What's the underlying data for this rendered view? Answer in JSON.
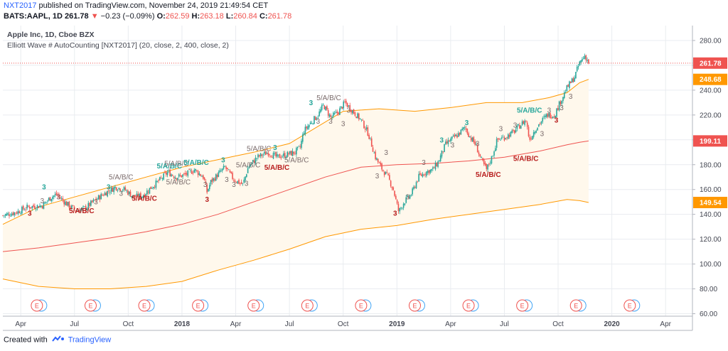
{
  "header": {
    "author": "NXT2017",
    "published_text": "published on TradingView.com, November 24, 2019 21:49:54 CET",
    "symbol": "BATS:AAPL, 1D",
    "last": "261.78",
    "change": "−0.23 (−0.09%)",
    "o_label": "O:",
    "o_value": "262.59",
    "h_label": "H:",
    "h_value": "263.18",
    "l_label": "L:",
    "l_value": "260.84",
    "c_label": "C:",
    "c_value": "261.78"
  },
  "legend": {
    "title": "Apple Inc, 1D, Cboe BZX",
    "indicator": "Elliott Wave # AutoCounting [NXT2017] (20, close, 2, 400, close, 2)"
  },
  "footer": {
    "created_with": "Created with",
    "brand": "TradingView"
  },
  "colors": {
    "up": "#26a69a",
    "down": "#ef5350",
    "band_fill": "#fff8ec",
    "orange": "#ff9800",
    "red_ma": "#ef5350",
    "grid": "#e9ecf0",
    "wave_green": "#26a69a",
    "wave_red": "#b71c1c",
    "wave_gray": "#7a6b6b"
  },
  "chart_data": {
    "type": "candlestick",
    "y_ticks": [
      60,
      80,
      100,
      120,
      140,
      160,
      180,
      200,
      220,
      240,
      260,
      280
    ],
    "y_tick_labels": [
      "60.00",
      "80.00",
      "100.00",
      "120.00",
      "140.00",
      "160.00",
      "180.00",
      "200.00",
      "220.00",
      "240.00",
      "260.00",
      "280.00"
    ],
    "ylim": [
      58,
      292
    ],
    "x_labels": [
      {
        "label": "Apr",
        "m": 3,
        "bold": false
      },
      {
        "label": "Jul",
        "m": 6,
        "bold": false
      },
      {
        "label": "Oct",
        "m": 9,
        "bold": false
      },
      {
        "label": "2018",
        "m": 12,
        "bold": true
      },
      {
        "label": "Apr",
        "m": 15,
        "bold": false
      },
      {
        "label": "Jul",
        "m": 18,
        "bold": false
      },
      {
        "label": "Oct",
        "m": 21,
        "bold": false
      },
      {
        "label": "2019",
        "m": 24,
        "bold": true
      },
      {
        "label": "Apr",
        "m": 27,
        "bold": false
      },
      {
        "label": "Jul",
        "m": 30,
        "bold": false
      },
      {
        "label": "Oct",
        "m": 33,
        "bold": false
      },
      {
        "label": "2020",
        "m": 36,
        "bold": true
      },
      {
        "label": "Apr",
        "m": 39,
        "bold": false
      }
    ],
    "xlim_months": [
      2.0,
      40.5
    ],
    "price_path": [
      [
        2.0,
        139
      ],
      [
        2.8,
        142
      ],
      [
        3.4,
        146
      ],
      [
        4.2,
        147
      ],
      [
        4.7,
        154
      ],
      [
        5.0,
        156
      ],
      [
        5.6,
        148
      ],
      [
        6.1,
        143
      ],
      [
        6.6,
        145
      ],
      [
        7.2,
        152
      ],
      [
        7.8,
        158
      ],
      [
        8.3,
        162
      ],
      [
        8.8,
        160
      ],
      [
        9.3,
        154
      ],
      [
        9.8,
        155
      ],
      [
        10.3,
        162
      ],
      [
        10.8,
        168
      ],
      [
        11.2,
        174
      ],
      [
        11.7,
        170
      ],
      [
        12.2,
        172
      ],
      [
        12.7,
        176
      ],
      [
        13.2,
        170
      ],
      [
        13.4,
        158
      ],
      [
        13.6,
        166
      ],
      [
        14.0,
        172
      ],
      [
        14.4,
        178
      ],
      [
        14.9,
        168
      ],
      [
        15.4,
        164
      ],
      [
        15.7,
        178
      ],
      [
        16.2,
        186
      ],
      [
        16.8,
        190
      ],
      [
        17.3,
        186
      ],
      [
        17.8,
        188
      ],
      [
        18.3,
        190
      ],
      [
        18.6,
        194
      ],
      [
        18.8,
        207
      ],
      [
        19.2,
        214
      ],
      [
        19.6,
        220
      ],
      [
        19.9,
        228
      ],
      [
        20.3,
        218
      ],
      [
        20.7,
        222
      ],
      [
        21.1,
        230
      ],
      [
        21.6,
        222
      ],
      [
        22.0,
        216
      ],
      [
        22.4,
        205
      ],
      [
        22.8,
        186
      ],
      [
        23.1,
        178
      ],
      [
        23.5,
        170
      ],
      [
        23.8,
        160
      ],
      [
        24.1,
        142
      ],
      [
        24.4,
        150
      ],
      [
        24.8,
        156
      ],
      [
        25.2,
        170
      ],
      [
        25.6,
        174
      ],
      [
        26.0,
        176
      ],
      [
        26.3,
        182
      ],
      [
        26.7,
        196
      ],
      [
        27.0,
        200
      ],
      [
        27.4,
        204
      ],
      [
        27.8,
        210
      ],
      [
        28.1,
        202
      ],
      [
        28.4,
        196
      ],
      [
        28.7,
        184
      ],
      [
        29.0,
        176
      ],
      [
        29.3,
        186
      ],
      [
        29.6,
        200
      ],
      [
        30.0,
        202
      ],
      [
        30.5,
        206
      ],
      [
        30.9,
        212
      ],
      [
        31.2,
        216
      ],
      [
        31.4,
        200
      ],
      [
        31.7,
        208
      ],
      [
        32.0,
        214
      ],
      [
        32.4,
        220
      ],
      [
        32.8,
        220
      ],
      [
        33.1,
        230
      ],
      [
        33.5,
        242
      ],
      [
        33.9,
        250
      ],
      [
        34.2,
        262
      ],
      [
        34.5,
        268
      ],
      [
        34.7,
        262
      ]
    ],
    "series": [
      {
        "name": "upper-band",
        "points": [
          [
            2.0,
            132
          ],
          [
            4.0,
            146
          ],
          [
            6.0,
            154
          ],
          [
            8.0,
            162
          ],
          [
            10.0,
            170
          ],
          [
            12.0,
            178
          ],
          [
            14.0,
            184
          ],
          [
            16.0,
            190
          ],
          [
            18.0,
            197
          ],
          [
            19.5,
            210
          ],
          [
            21.0,
            223
          ],
          [
            23.0,
            225
          ],
          [
            25.0,
            223
          ],
          [
            27.0,
            226
          ],
          [
            29.0,
            230
          ],
          [
            31.0,
            230
          ],
          [
            32.5,
            234
          ],
          [
            33.5,
            238
          ],
          [
            34.2,
            246
          ],
          [
            34.7,
            248.68
          ]
        ]
      },
      {
        "name": "lower-band",
        "points": [
          [
            2.0,
            88
          ],
          [
            4.0,
            82
          ],
          [
            6.0,
            80
          ],
          [
            8.0,
            80
          ],
          [
            10.0,
            82
          ],
          [
            12.0,
            86
          ],
          [
            14.0,
            95
          ],
          [
            16.0,
            103
          ],
          [
            18.0,
            112
          ],
          [
            20.0,
            122
          ],
          [
            22.0,
            128
          ],
          [
            24.0,
            131
          ],
          [
            26.0,
            136
          ],
          [
            28.0,
            140
          ],
          [
            30.0,
            144
          ],
          [
            32.0,
            148
          ],
          [
            33.5,
            152
          ],
          [
            34.2,
            151
          ],
          [
            34.7,
            149.54
          ]
        ]
      },
      {
        "name": "red-ma",
        "points": [
          [
            2.0,
            110
          ],
          [
            4.0,
            113
          ],
          [
            6.0,
            117
          ],
          [
            8.0,
            121
          ],
          [
            10.0,
            126
          ],
          [
            12.0,
            132
          ],
          [
            14.0,
            140
          ],
          [
            16.0,
            150
          ],
          [
            18.0,
            160
          ],
          [
            20.0,
            170
          ],
          [
            22.0,
            178
          ],
          [
            24.0,
            180
          ],
          [
            26.0,
            181
          ],
          [
            28.0,
            183
          ],
          [
            30.0,
            186
          ],
          [
            32.0,
            191
          ],
          [
            33.5,
            196
          ],
          [
            34.2,
            198
          ],
          [
            34.7,
            199.11
          ]
        ]
      }
    ],
    "price_labels": [
      {
        "value": 261.78,
        "text": "261.78",
        "color": "#ef5350"
      },
      {
        "value": 248.68,
        "text": "248.68",
        "color": "#ff9800"
      },
      {
        "value": 199.11,
        "text": "199.11",
        "color": "#ef5350"
      },
      {
        "value": 149.54,
        "text": "149.54",
        "color": "#ff9800"
      }
    ],
    "earnings_markers": [
      {
        "m": 3.9,
        "label": "E"
      },
      {
        "m": 6.9,
        "label": "E"
      },
      {
        "m": 9.9,
        "label": "E"
      },
      {
        "m": 12.9,
        "label": "E"
      },
      {
        "m": 16.0,
        "label": "E"
      },
      {
        "m": 19.0,
        "label": "E"
      },
      {
        "m": 22.0,
        "label": "E"
      },
      {
        "m": 25.0,
        "label": "E"
      },
      {
        "m": 28.0,
        "label": "E"
      },
      {
        "m": 31.0,
        "label": "E"
      },
      {
        "m": 34.0,
        "label": "E"
      },
      {
        "m": 37.0,
        "label": "E"
      }
    ],
    "wave_labels": [
      {
        "m": 4.3,
        "v": 160,
        "text": "3",
        "color": "green",
        "bold": true
      },
      {
        "m": 4.2,
        "v": 149,
        "text": "3",
        "color": "gray",
        "bold": false
      },
      {
        "m": 3.5,
        "v": 139,
        "text": "3",
        "color": "red",
        "bold": true
      },
      {
        "m": 5.1,
        "v": 152,
        "text": "3",
        "color": "gray",
        "bold": false
      },
      {
        "m": 6.4,
        "v": 141,
        "text": "5/A/B/C",
        "color": "red",
        "bold": true
      },
      {
        "m": 7.2,
        "v": 148,
        "text": "3",
        "color": "gray",
        "bold": false
      },
      {
        "m": 7.9,
        "v": 160,
        "text": "3",
        "color": "green",
        "bold": true
      },
      {
        "m": 8.6,
        "v": 168,
        "text": "5/A/B/C",
        "color": "gray",
        "bold": false
      },
      {
        "m": 9.9,
        "v": 151,
        "text": "5/A/B/C",
        "color": "red",
        "bold": true
      },
      {
        "m": 8.6,
        "v": 155,
        "text": "3",
        "color": "gray",
        "bold": false
      },
      {
        "m": 11.3,
        "v": 177,
        "text": "5/A/B/C",
        "color": "green",
        "bold": true
      },
      {
        "m": 11.7,
        "v": 179,
        "text": "5/A/B/C",
        "color": "gray",
        "bold": false
      },
      {
        "m": 11.8,
        "v": 164,
        "text": "5/A/B/C",
        "color": "gray",
        "bold": false
      },
      {
        "m": 12.8,
        "v": 180,
        "text": "5/A/B/C",
        "color": "green",
        "bold": true
      },
      {
        "m": 13.3,
        "v": 162,
        "text": "3",
        "color": "gray",
        "bold": false
      },
      {
        "m": 13.4,
        "v": 150,
        "text": "3",
        "color": "red",
        "bold": true
      },
      {
        "m": 14.3,
        "v": 182,
        "text": "3",
        "color": "green",
        "bold": true
      },
      {
        "m": 14.5,
        "v": 166,
        "text": "3",
        "color": "gray",
        "bold": false
      },
      {
        "m": 14.9,
        "v": 162,
        "text": "3",
        "color": "gray",
        "bold": false
      },
      {
        "m": 15.6,
        "v": 163,
        "text": "3",
        "color": "gray",
        "bold": false
      },
      {
        "m": 15.7,
        "v": 178,
        "text": "5/A/B/C",
        "color": "gray",
        "bold": false
      },
      {
        "m": 16.3,
        "v": 191,
        "text": "5/A/B/C",
        "color": "gray",
        "bold": false
      },
      {
        "m": 17.2,
        "v": 192,
        "text": "3",
        "color": "green",
        "bold": true
      },
      {
        "m": 17.3,
        "v": 176,
        "text": "5/A/B/C",
        "color": "red",
        "bold": true
      },
      {
        "m": 18.4,
        "v": 182,
        "text": "5/A/B/C",
        "color": "gray",
        "bold": false
      },
      {
        "m": 19.2,
        "v": 228,
        "text": "3",
        "color": "green",
        "bold": true
      },
      {
        "m": 20.2,
        "v": 232,
        "text": "5/A/B/C",
        "color": "gray",
        "bold": false
      },
      {
        "m": 19.6,
        "v": 213,
        "text": "3",
        "color": "gray",
        "bold": false
      },
      {
        "m": 20.3,
        "v": 213,
        "text": "3",
        "color": "gray",
        "bold": false
      },
      {
        "m": 21.3,
        "v": 222,
        "text": "3",
        "color": "gray",
        "bold": false
      },
      {
        "m": 21.0,
        "v": 211,
        "text": "3",
        "color": "gray",
        "bold": false
      },
      {
        "m": 23.4,
        "v": 188,
        "text": "3",
        "color": "gray",
        "bold": false
      },
      {
        "m": 22.9,
        "v": 169,
        "text": "3",
        "color": "gray",
        "bold": false
      },
      {
        "m": 23.9,
        "v": 139,
        "text": "3",
        "color": "red",
        "bold": true
      },
      {
        "m": 24.6,
        "v": 152,
        "text": "3",
        "color": "gray",
        "bold": false
      },
      {
        "m": 25.5,
        "v": 180,
        "text": "3",
        "color": "gray",
        "bold": false
      },
      {
        "m": 26.5,
        "v": 198,
        "text": "3",
        "color": "green",
        "bold": true
      },
      {
        "m": 27.9,
        "v": 212,
        "text": "3",
        "color": "green",
        "bold": true
      },
      {
        "m": 27.1,
        "v": 194,
        "text": "3",
        "color": "gray",
        "bold": false
      },
      {
        "m": 28.5,
        "v": 195,
        "text": "3",
        "color": "gray",
        "bold": false
      },
      {
        "m": 29.1,
        "v": 170,
        "text": "5/A/B/C",
        "color": "red",
        "bold": true
      },
      {
        "m": 29.8,
        "v": 207,
        "text": "3",
        "color": "gray",
        "bold": false
      },
      {
        "m": 31.4,
        "v": 222,
        "text": "5/A/B/C",
        "color": "green",
        "bold": true
      },
      {
        "m": 31.2,
        "v": 183,
        "text": "5/A/B/C",
        "color": "red",
        "bold": true
      },
      {
        "m": 30.6,
        "v": 210,
        "text": "3",
        "color": "gray",
        "bold": false
      },
      {
        "m": 32.1,
        "v": 203,
        "text": "3",
        "color": "gray",
        "bold": false
      },
      {
        "m": 32.5,
        "v": 222,
        "text": "3",
        "color": "gray",
        "bold": false
      },
      {
        "m": 32.9,
        "v": 214,
        "text": "3",
        "color": "red",
        "bold": true
      },
      {
        "m": 33.2,
        "v": 224,
        "text": "3",
        "color": "gray",
        "bold": false
      },
      {
        "m": 33.7,
        "v": 233,
        "text": "3",
        "color": "gray",
        "bold": false
      }
    ]
  }
}
